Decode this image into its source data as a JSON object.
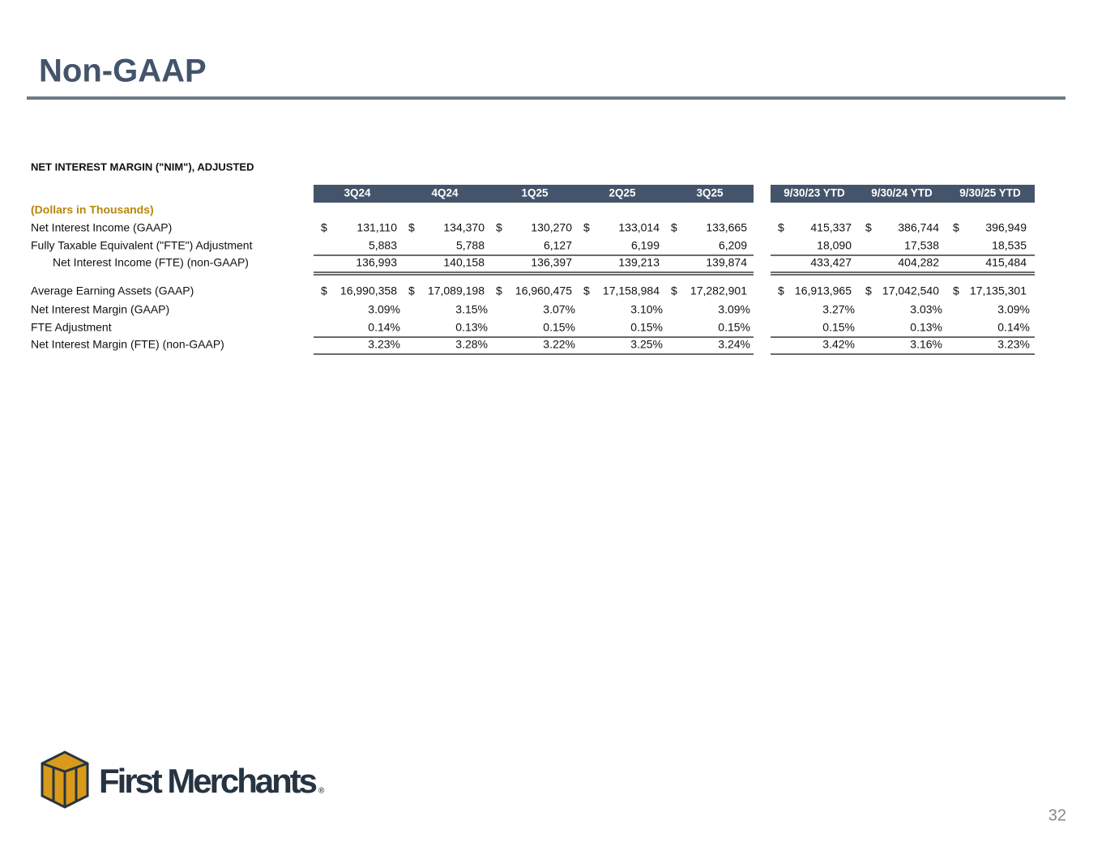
{
  "header": {
    "title": "Non-GAAP"
  },
  "table": {
    "title": "NET INTEREST MARGIN (\"NIM\"), ADJUSTED",
    "units": "(Dollars in Thousands)",
    "columns": [
      "3Q24",
      "4Q24",
      "1Q25",
      "2Q25",
      "3Q25",
      "9/30/23 YTD",
      "9/30/24 YTD",
      "9/30/25 YTD"
    ],
    "rows": [
      {
        "label": "Net Interest Income (GAAP)",
        "currency": "$",
        "cells": [
          "131,110",
          "134,370",
          "130,270",
          "133,014",
          "133,665",
          "415,337",
          "386,744",
          "396,949"
        ]
      },
      {
        "label": "Fully Taxable Equivalent (\"FTE\") Adjustment",
        "cells": [
          "5,883",
          "5,788",
          "6,127",
          "6,199",
          "6,209",
          "18,090",
          "17,538",
          "18,535"
        ]
      },
      {
        "label": "Net Interest Income (FTE) (non-GAAP)",
        "cells": [
          "136,993",
          "140,158",
          "136,397",
          "139,213",
          "139,874",
          "433,427",
          "404,282",
          "415,484"
        ]
      },
      {
        "label": "Average Earning Assets (GAAP)",
        "currency": "$",
        "cells": [
          "16,990,358",
          "17,089,198",
          "16,960,475",
          "17,158,984",
          "17,282,901",
          "16,913,965",
          "17,042,540",
          "17,135,301"
        ]
      },
      {
        "label": "Net Interest Margin (GAAP)",
        "cells": [
          "3.09%",
          "3.15%",
          "3.07%",
          "3.10%",
          "3.09%",
          "3.27%",
          "3.03%",
          "3.09%"
        ]
      },
      {
        "label": "FTE Adjustment",
        "cells": [
          "0.14%",
          "0.13%",
          "0.15%",
          "0.15%",
          "0.15%",
          "0.15%",
          "0.13%",
          "0.14%"
        ]
      },
      {
        "label": "Net Interest Margin (FTE) (non-GAAP)",
        "cells": [
          "3.23%",
          "3.28%",
          "3.22%",
          "3.25%",
          "3.24%",
          "3.42%",
          "3.16%",
          "3.23%"
        ]
      }
    ]
  },
  "footer": {
    "brand": "First Merchants",
    "mark": "®",
    "page": "32"
  }
}
